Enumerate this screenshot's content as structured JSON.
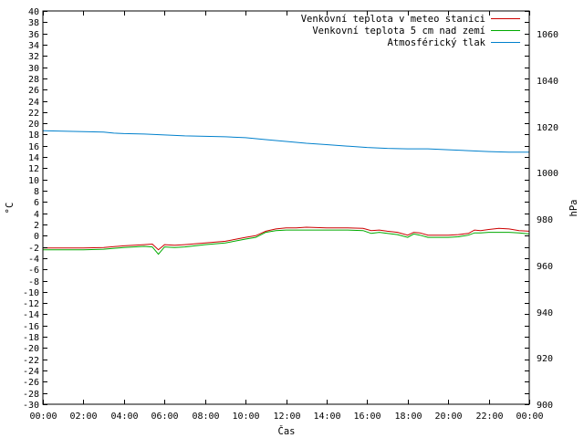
{
  "chart_data": {
    "type": "line",
    "xlabel": "Čas",
    "ylabel": "°C",
    "y2label": "hPa",
    "x_ticks": [
      "00:00",
      "02:00",
      "04:00",
      "06:00",
      "08:00",
      "10:00",
      "12:00",
      "14:00",
      "16:00",
      "18:00",
      "20:00",
      "22:00",
      "00:00"
    ],
    "x_range_hours": [
      0,
      24
    ],
    "ylim": [
      -30,
      40
    ],
    "y_ticks": [
      40,
      38,
      36,
      34,
      32,
      30,
      28,
      26,
      24,
      22,
      20,
      18,
      16,
      14,
      12,
      10,
      8,
      6,
      4,
      2,
      0,
      -2,
      -4,
      -6,
      -8,
      -10,
      -12,
      -14,
      -16,
      -18,
      -20,
      -22,
      -24,
      -26,
      -28,
      -30
    ],
    "y2lim": [
      900,
      1070
    ],
    "y2_ticks": [
      1060,
      1040,
      1020,
      1000,
      980,
      960,
      940,
      920,
      900
    ],
    "legend_position": "top-right",
    "series": [
      {
        "name": "Venkovní teplota v meteo stanici",
        "axis": "left",
        "color": "#cc0000",
        "x": [
          0,
          1,
          2,
          3,
          4,
          5,
          5.4,
          5.7,
          6,
          6.5,
          7,
          8,
          9,
          10,
          10.5,
          11,
          11.5,
          12,
          12.5,
          13,
          14,
          15,
          15.8,
          16.2,
          16.6,
          17,
          17.5,
          18,
          18.3,
          18.6,
          19,
          20,
          20.5,
          21,
          21.3,
          21.6,
          22,
          22.5,
          23,
          23.5,
          24
        ],
        "y": [
          -2.2,
          -2.2,
          -2.2,
          -2.1,
          -1.8,
          -1.6,
          -1.5,
          -2.5,
          -1.6,
          -1.7,
          -1.6,
          -1.3,
          -1.0,
          -0.3,
          0.0,
          0.8,
          1.2,
          1.4,
          1.4,
          1.5,
          1.4,
          1.4,
          1.3,
          0.9,
          1.0,
          0.8,
          0.6,
          0.1,
          0.6,
          0.5,
          0.1,
          0.1,
          0.2,
          0.4,
          1.0,
          0.9,
          1.1,
          1.3,
          1.2,
          0.9,
          0.8
        ]
      },
      {
        "name": "Venkovní teplota 5 cm nad zemí",
        "axis": "left",
        "color": "#00aa00",
        "x": [
          0,
          1,
          2,
          3,
          4,
          5,
          5.4,
          5.7,
          6,
          6.5,
          7,
          8,
          9,
          10,
          10.5,
          11,
          11.5,
          12,
          12.5,
          13,
          14,
          15,
          15.8,
          16.2,
          16.6,
          17,
          17.5,
          18,
          18.3,
          18.6,
          19,
          20,
          20.5,
          21,
          21.3,
          21.6,
          22,
          22.5,
          23,
          23.5,
          24
        ],
        "y": [
          -2.5,
          -2.5,
          -2.5,
          -2.4,
          -2.1,
          -1.9,
          -2.0,
          -3.3,
          -2.0,
          -2.1,
          -2.0,
          -1.6,
          -1.3,
          -0.6,
          -0.3,
          0.6,
          0.9,
          1.0,
          1.0,
          1.0,
          1.0,
          1.0,
          0.9,
          0.4,
          0.6,
          0.4,
          0.2,
          -0.3,
          0.3,
          0.1,
          -0.3,
          -0.3,
          -0.2,
          0.1,
          0.5,
          0.5,
          0.6,
          0.6,
          0.6,
          0.5,
          0.3
        ]
      },
      {
        "name": "Atmosférický tlak",
        "axis": "right",
        "color": "#0080cc",
        "x": [
          0,
          1,
          2,
          3,
          3.5,
          4,
          5,
          6,
          7,
          8,
          9,
          10,
          11,
          12,
          13,
          14,
          15,
          16,
          17,
          18,
          19,
          20,
          21,
          22,
          23,
          24
        ],
        "y": [
          1018.2,
          1018.0,
          1017.8,
          1017.6,
          1017.2,
          1017.0,
          1016.8,
          1016.4,
          1016.0,
          1015.8,
          1015.6,
          1015.2,
          1014.4,
          1013.6,
          1012.8,
          1012.2,
          1011.6,
          1011.0,
          1010.6,
          1010.4,
          1010.4,
          1010.0,
          1009.6,
          1009.2,
          1009.0,
          1009.0
        ]
      }
    ]
  }
}
